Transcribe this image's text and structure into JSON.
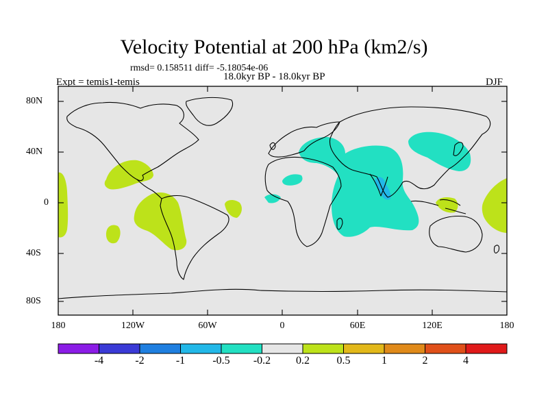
{
  "title": "Velocity Potential at 200 hPa (km2/s)",
  "stats": "rmsd= 0.158511 diff= -5.18054e-06",
  "period": "18.0kyr BP - 18.0kyr BP",
  "experiment": "Expt = temis1-temis",
  "season": "DJF",
  "y_ticks": [
    "80N",
    "40N",
    "0",
    "40S",
    "80S"
  ],
  "x_ticks": [
    "180",
    "120W",
    "60W",
    "0",
    "60E",
    "120E",
    "180"
  ],
  "colorbar": {
    "labels": [
      "-4",
      "-2",
      "-1",
      "-0.5",
      "-0.2",
      "0.2",
      "0.5",
      "1",
      "2",
      "4"
    ],
    "colors": [
      "#8b1ce6",
      "#3a3ad6",
      "#1f7fe0",
      "#22b8e8",
      "#22e0c2",
      "#e6e6e6",
      "#bde21a",
      "#e2b81a",
      "#e08a1a",
      "#e0501a",
      "#e01a1a"
    ]
  },
  "colors": {
    "land_ocean_neutral": "#e6e6e6",
    "positive_0p2_0p5": "#bde21a",
    "negative_0p5_0p2": "#22e0c2",
    "negative_1_0p5": "#22b8e8"
  }
}
